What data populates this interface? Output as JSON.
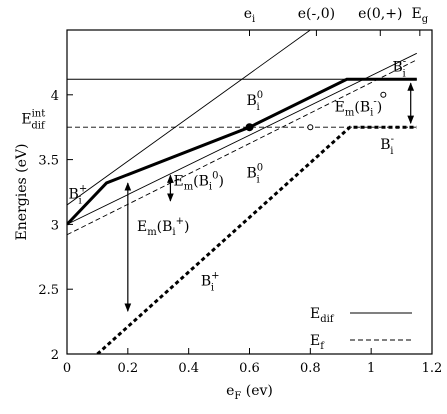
{
  "chart_data": {
    "type": "line",
    "xlabel": "eF (ev)",
    "xlabel_main": "e",
    "xlabel_sub": "F",
    "xlabel_unit": " (ev)",
    "ylabel": "Energies (eV)",
    "xlim": [
      0,
      1.2
    ],
    "ylim": [
      2,
      4.5
    ],
    "grid": false,
    "legend_position": "bottom-right",
    "x_ticks": [
      0,
      0.2,
      0.4,
      0.6,
      0.8,
      1,
      1.2
    ],
    "x_tick_labels": [
      "0",
      "0.2",
      "0.4",
      "0.6",
      "0.8",
      "1",
      "1.2"
    ],
    "y_ticks": [
      2,
      2.5,
      3,
      3.5,
      4
    ],
    "y_tick_labels": [
      "2",
      "2.5",
      "3",
      "3.5",
      "4"
    ],
    "top_ticks": [
      {
        "x": 0.6,
        "main": "e",
        "sub": "i",
        "sup": ""
      },
      {
        "x": 0.82,
        "main": "e(-,0)",
        "sub": "",
        "sup": ""
      },
      {
        "x": 1.03,
        "main": "e(0,+)",
        "sub": "",
        "sup": ""
      },
      {
        "x": 1.16,
        "main": "E",
        "sub": "g",
        "sup": ""
      }
    ],
    "series": [
      {
        "name": "Edif",
        "style": "thick-solid",
        "points": [
          [
            0,
            3.0
          ],
          [
            0.13,
            3.32
          ],
          [
            0.6,
            3.75
          ],
          [
            0.92,
            4.12
          ],
          [
            1.15,
            4.12
          ]
        ]
      },
      {
        "name": "Ef",
        "style": "thick-dashed",
        "points": [
          [
            0.1,
            2.0
          ],
          [
            0.93,
            3.75
          ],
          [
            1.15,
            3.75
          ]
        ]
      },
      {
        "name": "",
        "style": "thin-solid",
        "points": [
          [
            0,
            3.15
          ],
          [
            0.8,
            4.5
          ]
        ]
      },
      {
        "name": "",
        "style": "thin-solid",
        "points": [
          [
            0,
            3.0
          ],
          [
            1.15,
            4.32
          ]
        ]
      },
      {
        "name": "",
        "style": "thin-solid",
        "points": [
          [
            0,
            4.12
          ],
          [
            1.15,
            4.12
          ]
        ]
      },
      {
        "name": "",
        "style": "thin-dashed",
        "points": [
          [
            0,
            2.92
          ],
          [
            1.15,
            4.27
          ]
        ]
      },
      {
        "name": "",
        "style": "thin-dashed",
        "points": [
          [
            0,
            3.75
          ],
          [
            1.15,
            3.75
          ]
        ]
      }
    ],
    "markers": [
      {
        "x": 0.6,
        "y": 3.75,
        "filled": true
      },
      {
        "x": 0.8,
        "y": 3.75,
        "filled": false
      },
      {
        "x": 1.04,
        "y": 4.0,
        "filled": false
      }
    ],
    "arrows": [
      {
        "x": 0.2,
        "y1": 2.3,
        "y2": 3.35
      },
      {
        "x": 0.34,
        "y1": 3.15,
        "y2": 3.41
      },
      {
        "x": 1.13,
        "y1": 3.75,
        "y2": 4.12
      }
    ],
    "annotations": [
      {
        "main": "B",
        "sub": "i",
        "sup": "+",
        "x": 0.005,
        "y": 3.2
      },
      {
        "main": "B",
        "sub": "i",
        "sup": "0",
        "x": 0.59,
        "y": 3.92
      },
      {
        "main": "B",
        "sub": "i",
        "sup": "0",
        "x": 0.59,
        "y": 3.36
      },
      {
        "main": "B",
        "sub": "i",
        "sup": "-",
        "x": 1.03,
        "y": 3.58
      },
      {
        "main": "B",
        "sub": "i",
        "sup": "-",
        "x": 1.07,
        "y": 4.18
      },
      {
        "main": "B",
        "sub": "i",
        "sup": "+",
        "x": 0.44,
        "y": 2.53
      },
      {
        "main": "E",
        "sub": "m",
        "sup": "",
        "suffix_main": "(B",
        "suffix_sub": "i",
        "suffix_sup": "+",
        "close": ")",
        "x": 0.23,
        "y": 2.95
      },
      {
        "main": "E",
        "sub": "m",
        "sup": "",
        "suffix_main": "(B",
        "suffix_sub": "i",
        "suffix_sup": "0",
        "close": ")",
        "x": 0.35,
        "y": 3.3
      },
      {
        "main": "E",
        "sub": "m",
        "sup": "",
        "suffix_main": "(B",
        "suffix_sub": "i",
        "suffix_sup": "-",
        "close": ")",
        "x": 0.88,
        "y": 3.87
      },
      {
        "main": "E",
        "sub": "dif",
        "sup": "int",
        "x": -0.15,
        "y": 3.78
      }
    ],
    "legend": [
      {
        "main": "E",
        "sub": "dif",
        "style": "thin-solid"
      },
      {
        "main": "E",
        "sub": "f",
        "style": "thin-dashed"
      }
    ]
  }
}
